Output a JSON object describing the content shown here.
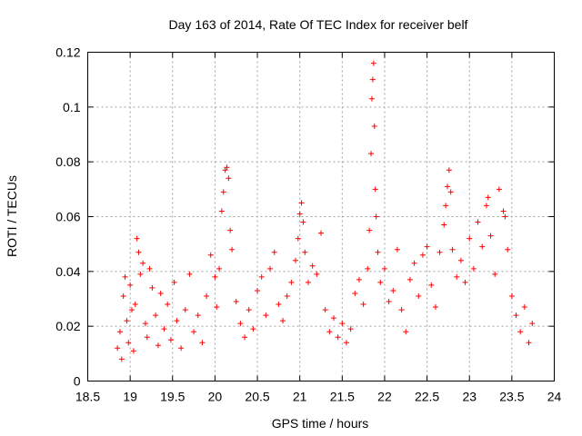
{
  "chart_data": {
    "type": "scatter",
    "title": "Day 163 of 2014, Rate Of TEC Index for receiver belf",
    "xlabel": "GPS time / hours",
    "ylabel": "ROTI / TECUs",
    "xlim": [
      18.5,
      24
    ],
    "ylim": [
      0,
      0.12
    ],
    "xticks": [
      "18.5",
      "19",
      "19.5",
      "20",
      "20.5",
      "21",
      "21.5",
      "22",
      "22.5",
      "23",
      "23.5",
      "24"
    ],
    "yticks": [
      "0",
      "0.02",
      "0.04",
      "0.06",
      "0.08",
      "0.1",
      "0.12"
    ],
    "grid": true,
    "marker": "+",
    "marker_color": "#ff0000",
    "series": [
      {
        "name": "ROTI",
        "color": "#ff0000",
        "points": [
          [
            18.85,
            0.012
          ],
          [
            18.88,
            0.018
          ],
          [
            18.9,
            0.008
          ],
          [
            18.92,
            0.031
          ],
          [
            18.94,
            0.038
          ],
          [
            18.96,
            0.022
          ],
          [
            18.98,
            0.014
          ],
          [
            19.0,
            0.035
          ],
          [
            19.02,
            0.026
          ],
          [
            19.04,
            0.011
          ],
          [
            19.06,
            0.028
          ],
          [
            19.08,
            0.052
          ],
          [
            19.1,
            0.047
          ],
          [
            19.12,
            0.039
          ],
          [
            19.15,
            0.043
          ],
          [
            19.18,
            0.021
          ],
          [
            19.2,
            0.016
          ],
          [
            19.23,
            0.041
          ],
          [
            19.26,
            0.034
          ],
          [
            19.3,
            0.024
          ],
          [
            19.33,
            0.013
          ],
          [
            19.36,
            0.032
          ],
          [
            19.4,
            0.019
          ],
          [
            19.44,
            0.028
          ],
          [
            19.48,
            0.015
          ],
          [
            19.52,
            0.036
          ],
          [
            19.55,
            0.022
          ],
          [
            19.6,
            0.012
          ],
          [
            19.65,
            0.026
          ],
          [
            19.7,
            0.039
          ],
          [
            19.75,
            0.018
          ],
          [
            19.8,
            0.024
          ],
          [
            19.85,
            0.014
          ],
          [
            19.9,
            0.031
          ],
          [
            19.95,
            0.046
          ],
          [
            20.0,
            0.038
          ],
          [
            20.02,
            0.027
          ],
          [
            20.05,
            0.041
          ],
          [
            20.08,
            0.062
          ],
          [
            20.1,
            0.069
          ],
          [
            20.12,
            0.077
          ],
          [
            20.14,
            0.078
          ],
          [
            20.16,
            0.074
          ],
          [
            20.18,
            0.055
          ],
          [
            20.2,
            0.048
          ],
          [
            20.25,
            0.029
          ],
          [
            20.3,
            0.021
          ],
          [
            20.35,
            0.016
          ],
          [
            20.4,
            0.026
          ],
          [
            20.45,
            0.019
          ],
          [
            20.5,
            0.033
          ],
          [
            20.55,
            0.038
          ],
          [
            20.6,
            0.024
          ],
          [
            20.65,
            0.041
          ],
          [
            20.7,
            0.047
          ],
          [
            20.75,
            0.028
          ],
          [
            20.8,
            0.022
          ],
          [
            20.85,
            0.031
          ],
          [
            20.9,
            0.036
          ],
          [
            20.95,
            0.044
          ],
          [
            20.98,
            0.052
          ],
          [
            21.0,
            0.061
          ],
          [
            21.02,
            0.065
          ],
          [
            21.04,
            0.058
          ],
          [
            21.06,
            0.047
          ],
          [
            21.1,
            0.036
          ],
          [
            21.15,
            0.042
          ],
          [
            21.2,
            0.039
          ],
          [
            21.25,
            0.054
          ],
          [
            21.3,
            0.026
          ],
          [
            21.35,
            0.018
          ],
          [
            21.4,
            0.023
          ],
          [
            21.45,
            0.016
          ],
          [
            21.5,
            0.021
          ],
          [
            21.55,
            0.014
          ],
          [
            21.6,
            0.019
          ],
          [
            21.65,
            0.032
          ],
          [
            21.7,
            0.037
          ],
          [
            21.75,
            0.028
          ],
          [
            21.8,
            0.041
          ],
          [
            21.82,
            0.055
          ],
          [
            21.84,
            0.083
          ],
          [
            21.85,
            0.103
          ],
          [
            21.86,
            0.11
          ],
          [
            21.87,
            0.116
          ],
          [
            21.88,
            0.093
          ],
          [
            21.89,
            0.07
          ],
          [
            21.9,
            0.06
          ],
          [
            21.92,
            0.047
          ],
          [
            21.95,
            0.036
          ],
          [
            22.0,
            0.041
          ],
          [
            22.05,
            0.029
          ],
          [
            22.1,
            0.033
          ],
          [
            22.15,
            0.048
          ],
          [
            22.2,
            0.026
          ],
          [
            22.25,
            0.018
          ],
          [
            22.3,
            0.037
          ],
          [
            22.35,
            0.043
          ],
          [
            22.4,
            0.031
          ],
          [
            22.45,
            0.046
          ],
          [
            22.5,
            0.049
          ],
          [
            22.55,
            0.035
          ],
          [
            22.6,
            0.027
          ],
          [
            22.65,
            0.047
          ],
          [
            22.7,
            0.057
          ],
          [
            22.72,
            0.064
          ],
          [
            22.74,
            0.071
          ],
          [
            22.76,
            0.077
          ],
          [
            22.78,
            0.069
          ],
          [
            22.8,
            0.048
          ],
          [
            22.85,
            0.038
          ],
          [
            22.9,
            0.044
          ],
          [
            22.95,
            0.036
          ],
          [
            23.0,
            0.052
          ],
          [
            23.05,
            0.041
          ],
          [
            23.1,
            0.058
          ],
          [
            23.15,
            0.049
          ],
          [
            23.2,
            0.064
          ],
          [
            23.22,
            0.067
          ],
          [
            23.25,
            0.053
          ],
          [
            23.3,
            0.039
          ],
          [
            23.35,
            0.07
          ],
          [
            23.4,
            0.062
          ],
          [
            23.42,
            0.06
          ],
          [
            23.45,
            0.048
          ],
          [
            23.5,
            0.031
          ],
          [
            23.55,
            0.024
          ],
          [
            23.6,
            0.018
          ],
          [
            23.65,
            0.027
          ],
          [
            23.7,
            0.014
          ],
          [
            23.74,
            0.021
          ]
        ]
      }
    ]
  }
}
